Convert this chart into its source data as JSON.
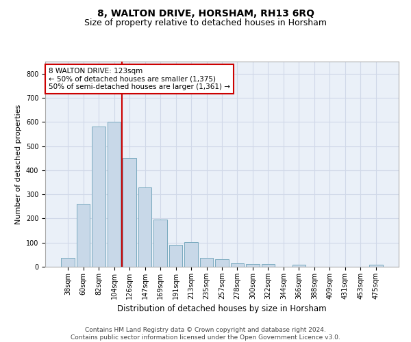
{
  "title1": "8, WALTON DRIVE, HORSHAM, RH13 6RQ",
  "title2": "Size of property relative to detached houses in Horsham",
  "xlabel": "Distribution of detached houses by size in Horsham",
  "ylabel": "Number of detached properties",
  "categories": [
    "38sqm",
    "60sqm",
    "82sqm",
    "104sqm",
    "126sqm",
    "147sqm",
    "169sqm",
    "191sqm",
    "213sqm",
    "235sqm",
    "257sqm",
    "278sqm",
    "300sqm",
    "322sqm",
    "344sqm",
    "366sqm",
    "388sqm",
    "409sqm",
    "431sqm",
    "453sqm",
    "475sqm"
  ],
  "values": [
    38,
    260,
    580,
    602,
    450,
    328,
    195,
    90,
    103,
    37,
    32,
    15,
    12,
    10,
    0,
    8,
    0,
    0,
    0,
    0,
    8
  ],
  "bar_color": "#c8d8e8",
  "bar_edge_color": "#7aaabf",
  "vline_color": "#cc0000",
  "vline_x": 3.5,
  "annotation_text": "8 WALTON DRIVE: 123sqm\n← 50% of detached houses are smaller (1,375)\n50% of semi-detached houses are larger (1,361) →",
  "annotation_box_color": "#ffffff",
  "annotation_box_edge_color": "#cc0000",
  "ylim": [
    0,
    850
  ],
  "yticks": [
    0,
    100,
    200,
    300,
    400,
    500,
    600,
    700,
    800
  ],
  "grid_color": "#d0d8e8",
  "bg_color": "#eaf0f8",
  "footer": "Contains HM Land Registry data © Crown copyright and database right 2024.\nContains public sector information licensed under the Open Government Licence v3.0.",
  "title1_fontsize": 10,
  "title2_fontsize": 9,
  "xlabel_fontsize": 8.5,
  "ylabel_fontsize": 8,
  "tick_fontsize": 7,
  "annotation_fontsize": 7.5
}
